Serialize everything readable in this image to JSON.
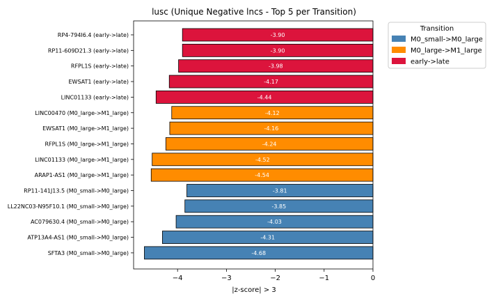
{
  "chart_data": {
    "type": "bar",
    "orientation": "horizontal",
    "title": "lusc (Unique Negative lncs - Top 5 per Transition)",
    "xlabel": "|z-score| > 3",
    "ylabel": "",
    "xlim": [
      -4.9,
      0
    ],
    "xticks": [
      -4,
      -3,
      -2,
      -1,
      0
    ],
    "xtick_labels": [
      "−4",
      "−3",
      "−2",
      "−1",
      "0"
    ],
    "legend": {
      "title": "Transition",
      "placement": "upper-right-outside",
      "entries": [
        {
          "name": "M0_small->M0_large",
          "color": "#4682b4"
        },
        {
          "name": "M0_large->M1_large",
          "color": "#ff8c00"
        },
        {
          "name": "early->late",
          "color": "#dc143c"
        }
      ]
    },
    "bars": [
      {
        "label": "RP4-794I6.4 (early->late)",
        "value": -3.9,
        "value_label": "-3.90",
        "group": "early->late"
      },
      {
        "label": "RP11-609D21.3 (early->late)",
        "value": -3.9,
        "value_label": "-3.90",
        "group": "early->late"
      },
      {
        "label": "RFPL1S (early->late)",
        "value": -3.98,
        "value_label": "-3.98",
        "group": "early->late"
      },
      {
        "label": "EWSAT1 (early->late)",
        "value": -4.17,
        "value_label": "-4.17",
        "group": "early->late"
      },
      {
        "label": "LINC01133 (early->late)",
        "value": -4.44,
        "value_label": "-4.44",
        "group": "early->late"
      },
      {
        "label": "LINC00470 (M0_large->M1_large)",
        "value": -4.12,
        "value_label": "-4.12",
        "group": "M0_large->M1_large"
      },
      {
        "label": "EWSAT1 (M0_large->M1_large)",
        "value": -4.16,
        "value_label": "-4.16",
        "group": "M0_large->M1_large"
      },
      {
        "label": "RFPL1S (M0_large->M1_large)",
        "value": -4.24,
        "value_label": "-4.24",
        "group": "M0_large->M1_large"
      },
      {
        "label": "LINC01133 (M0_large->M1_large)",
        "value": -4.52,
        "value_label": "-4.52",
        "group": "M0_large->M1_large"
      },
      {
        "label": "ARAP1-AS1 (M0_large->M1_large)",
        "value": -4.54,
        "value_label": "-4.54",
        "group": "M0_large->M1_large"
      },
      {
        "label": "RP11-141J13.5 (M0_small->M0_large)",
        "value": -3.81,
        "value_label": "-3.81",
        "group": "M0_small->M0_large"
      },
      {
        "label": "LL22NC03-N95F10.1 (M0_small->M0_large)",
        "value": -3.85,
        "value_label": "-3.85",
        "group": "M0_small->M0_large"
      },
      {
        "label": "AC079630.4 (M0_small->M0_large)",
        "value": -4.03,
        "value_label": "-4.03",
        "group": "M0_small->M0_large"
      },
      {
        "label": "ATP13A4-AS1 (M0_small->M0_large)",
        "value": -4.31,
        "value_label": "-4.31",
        "group": "M0_small->M0_large"
      },
      {
        "label": "SFTA3 (M0_small->M0_large)",
        "value": -4.68,
        "value_label": "-4.68",
        "group": "M0_small->M0_large"
      }
    ]
  }
}
